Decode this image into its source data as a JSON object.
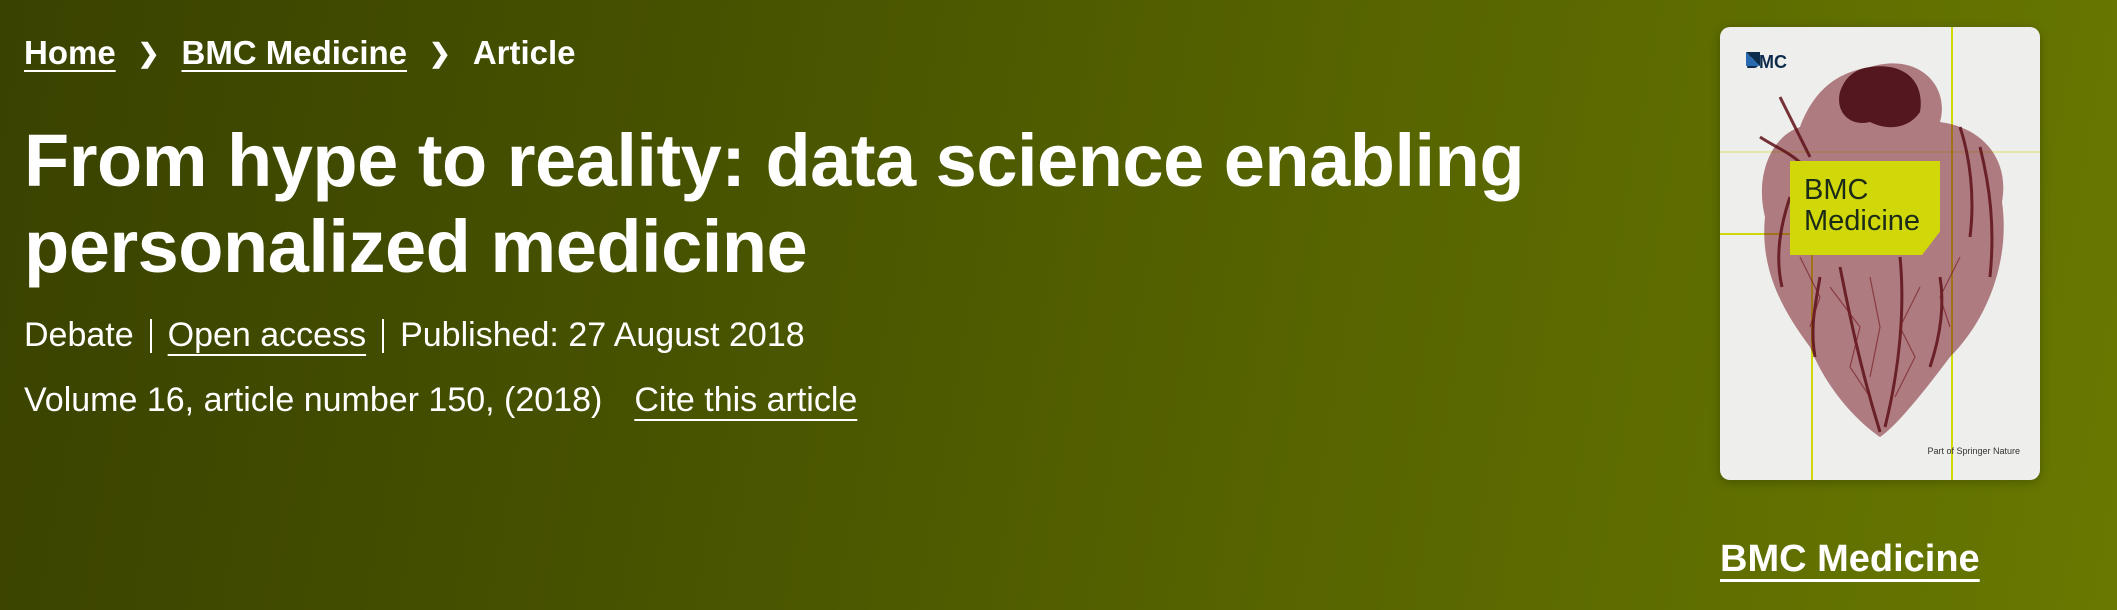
{
  "breadcrumb": {
    "home": "Home",
    "journal": "BMC Medicine",
    "current": "Article"
  },
  "article": {
    "title": "From hype to reality: data science enabling personalized medicine",
    "type": "Debate",
    "access": "Open access",
    "published": "Published: 27 August 2018",
    "volume": "Volume 16, article number 150, (2018)",
    "cite": "Cite this article"
  },
  "cover": {
    "logo": "BMC",
    "journal_line1": "BMC",
    "journal_line2": "Medicine",
    "footer": "Part of Springer Nature"
  },
  "journal_link": "BMC Medicine",
  "colors": {
    "background_dark": "#3a4200",
    "background_light": "#687800",
    "cover_accent": "#d0d80a",
    "cover_heart": "#6e1a22"
  }
}
